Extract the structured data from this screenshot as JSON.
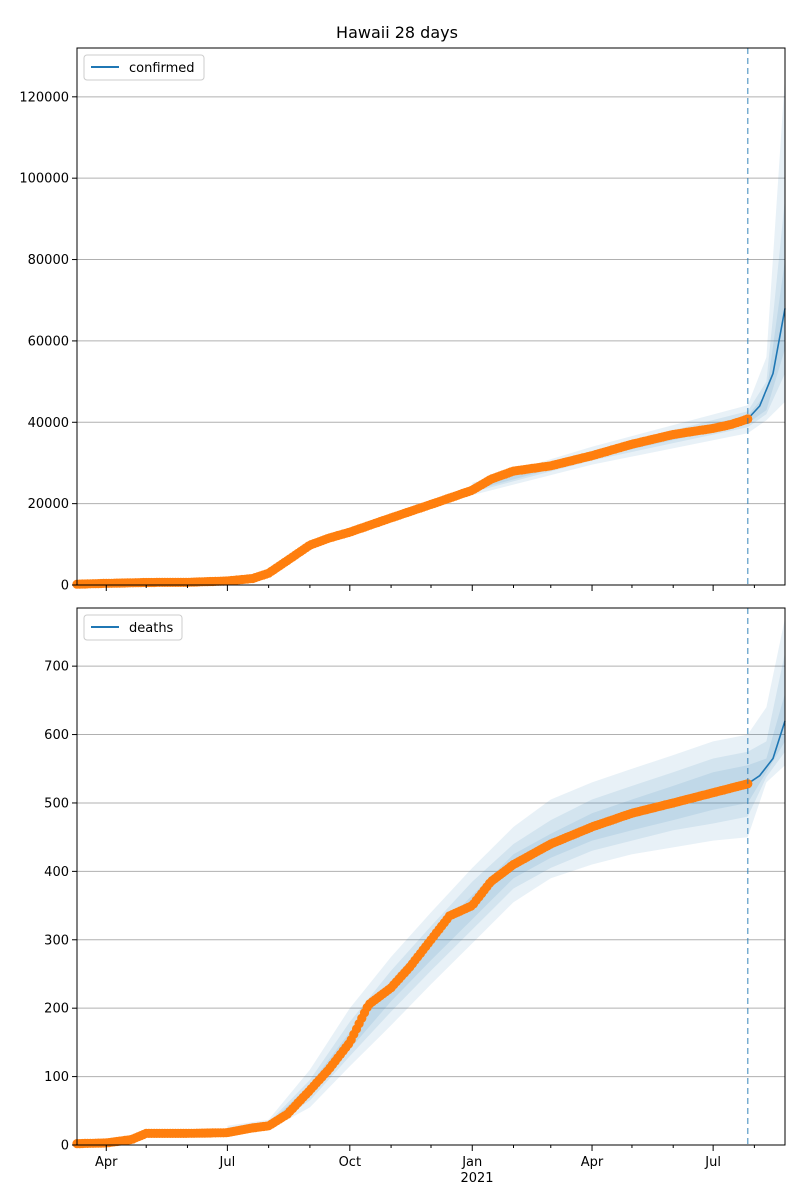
{
  "colors": {
    "model": "#1f77b4",
    "observed": "#ff7f0e",
    "band": "#1f77b4",
    "grid": "#b0b0b0"
  },
  "chart_data": [
    {
      "type": "line",
      "title": "Hawaii 28 days",
      "legend": {
        "placement": "top-left",
        "entries": [
          "confirmed"
        ]
      },
      "grid": "y-major",
      "x_type": "date",
      "xlim": [
        "2020-03-10",
        "2021-08-24"
      ],
      "ylim": [
        0,
        132000
      ],
      "yticks": [
        0,
        20000,
        40000,
        60000,
        80000,
        100000,
        120000
      ],
      "forecast_start": "2021-07-27",
      "series": [
        {
          "name": "confirmed",
          "x": [
            "2020-03-10",
            "2020-04-01",
            "2020-05-01",
            "2020-06-01",
            "2020-07-01",
            "2020-07-20",
            "2020-08-01",
            "2020-08-15",
            "2020-09-01",
            "2020-09-15",
            "2020-10-01",
            "2020-11-01",
            "2020-12-01",
            "2021-01-01",
            "2021-01-15",
            "2021-02-01",
            "2021-03-01",
            "2021-04-01",
            "2021-05-01",
            "2021-06-01",
            "2021-07-01",
            "2021-07-15",
            "2021-07-27",
            "2021-08-05",
            "2021-08-15",
            "2021-08-24"
          ],
          "y": [
            200,
            400,
            620,
            650,
            1000,
            1600,
            2900,
            6000,
            9800,
            11500,
            13000,
            16500,
            19800,
            23600,
            26000,
            28000,
            29300,
            31800,
            34600,
            37000,
            38500,
            39500,
            40800,
            44000,
            52000,
            68000
          ]
        },
        {
          "name": "bands",
          "x": [
            "2021-01-01",
            "2021-04-01",
            "2021-07-27",
            "2021-08-10",
            "2021-08-24"
          ],
          "bands": [
            {
              "lower": [
                22100,
                29600,
                37300,
                40500,
                45000
              ],
              "upper": [
                25100,
                34000,
                44200,
                56000,
                125000
              ]
            },
            {
              "lower": [
                22800,
                30600,
                38800,
                42000,
                52000
              ],
              "upper": [
                24500,
                33000,
                42700,
                50000,
                95000
              ]
            },
            {
              "lower": [
                23200,
                31200,
                39700,
                43000,
                58000
              ],
              "upper": [
                24000,
                32400,
                41700,
                47000,
                80000
              ]
            }
          ]
        }
      ],
      "observed": {
        "x": [
          "2020-03-10",
          "2020-04-01",
          "2020-05-01",
          "2020-06-01",
          "2020-07-01",
          "2020-07-20",
          "2020-08-01",
          "2020-08-15",
          "2020-09-01",
          "2020-09-15",
          "2020-10-01",
          "2020-11-01",
          "2020-12-01",
          "2021-01-01",
          "2021-01-15",
          "2021-02-01",
          "2021-03-01",
          "2021-04-01",
          "2021-05-01",
          "2021-06-01",
          "2021-07-01",
          "2021-07-15",
          "2021-07-27"
        ],
        "y": [
          200,
          400,
          620,
          650,
          1000,
          1600,
          2900,
          6000,
          9800,
          11500,
          13000,
          16500,
          19800,
          23300,
          26000,
          28000,
          29300,
          31800,
          34600,
          37000,
          38500,
          39500,
          40800
        ]
      }
    },
    {
      "type": "line",
      "title": "",
      "legend": {
        "placement": "top-left",
        "entries": [
          "deaths"
        ]
      },
      "grid": "y-major",
      "x_type": "date",
      "xlim": [
        "2020-03-10",
        "2021-08-24"
      ],
      "ylim": [
        0,
        785
      ],
      "yticks": [
        0,
        100,
        200,
        300,
        400,
        500,
        600,
        700
      ],
      "xticks": [
        "Apr",
        "Jul",
        "Oct",
        "Jan",
        "Apr",
        "Jul"
      ],
      "xtick_dates": [
        "2020-04-01",
        "2020-07-01",
        "2020-10-01",
        "2021-01-01",
        "2021-04-01",
        "2021-07-01"
      ],
      "xtick_year_label": "2021",
      "forecast_start": "2021-07-27",
      "series": [
        {
          "name": "deaths",
          "x": [
            "2020-03-10",
            "2020-04-01",
            "2020-04-20",
            "2020-05-01",
            "2020-06-01",
            "2020-07-01",
            "2020-07-20",
            "2020-08-01",
            "2020-08-15",
            "2020-09-01",
            "2020-09-15",
            "2020-10-01",
            "2020-10-15",
            "2020-11-01",
            "2020-11-15",
            "2020-12-01",
            "2020-12-15",
            "2021-01-01",
            "2021-01-15",
            "2021-02-01",
            "2021-03-01",
            "2021-04-01",
            "2021-05-01",
            "2021-06-01",
            "2021-07-01",
            "2021-07-27",
            "2021-08-05",
            "2021-08-15",
            "2021-08-24"
          ],
          "y": [
            2,
            3,
            8,
            17,
            17,
            18,
            25,
            28,
            45,
            80,
            110,
            150,
            205,
            230,
            260,
            300,
            335,
            350,
            385,
            410,
            440,
            465,
            485,
            500,
            515,
            528,
            540,
            565,
            620
          ]
        },
        {
          "name": "bands",
          "x": [
            "2020-07-01",
            "2020-08-01",
            "2020-09-01",
            "2020-10-01",
            "2020-11-01",
            "2020-12-01",
            "2021-01-01",
            "2021-02-01",
            "2021-03-01",
            "2021-04-01",
            "2021-05-01",
            "2021-06-01",
            "2021-07-01",
            "2021-07-27",
            "2021-08-10",
            "2021-08-24"
          ],
          "bands": [
            {
              "lower": [
                14,
                22,
                55,
                115,
                175,
                235,
                295,
                355,
                390,
                410,
                425,
                435,
                445,
                450,
                530,
                555
              ],
              "upper": [
                28,
                37,
                110,
                200,
                275,
                340,
                405,
                465,
                505,
                530,
                550,
                570,
                590,
                600,
                640,
                770
              ]
            },
            {
              "lower": [
                16,
                25,
                65,
                130,
                195,
                255,
                315,
                375,
                405,
                430,
                445,
                460,
                470,
                480,
                538,
                575
              ],
              "upper": [
                25,
                33,
                95,
                180,
                255,
                320,
                385,
                440,
                475,
                505,
                525,
                545,
                565,
                575,
                590,
                720
              ]
            },
            {
              "lower": [
                17,
                27,
                72,
                140,
                210,
                270,
                330,
                390,
                420,
                445,
                460,
                475,
                490,
                500,
                545,
                590
              ],
              "upper": [
                23,
                31,
                88,
                165,
                240,
                305,
                365,
                425,
                455,
                485,
                505,
                525,
                545,
                555,
                565,
                660
              ]
            }
          ]
        }
      ],
      "observed": {
        "x": [
          "2020-03-10",
          "2020-04-01",
          "2020-04-20",
          "2020-05-01",
          "2020-06-01",
          "2020-07-01",
          "2020-07-20",
          "2020-08-01",
          "2020-08-15",
          "2020-09-01",
          "2020-09-15",
          "2020-10-01",
          "2020-10-15",
          "2020-11-01",
          "2020-11-15",
          "2020-12-01",
          "2020-12-15",
          "2021-01-01",
          "2021-01-15",
          "2021-02-01",
          "2021-03-01",
          "2021-04-01",
          "2021-05-01",
          "2021-06-01",
          "2021-07-01",
          "2021-07-27"
        ],
        "y": [
          2,
          3,
          8,
          17,
          17,
          18,
          25,
          28,
          45,
          80,
          110,
          150,
          205,
          230,
          260,
          300,
          335,
          350,
          385,
          410,
          440,
          465,
          485,
          500,
          515,
          528
        ]
      }
    }
  ]
}
